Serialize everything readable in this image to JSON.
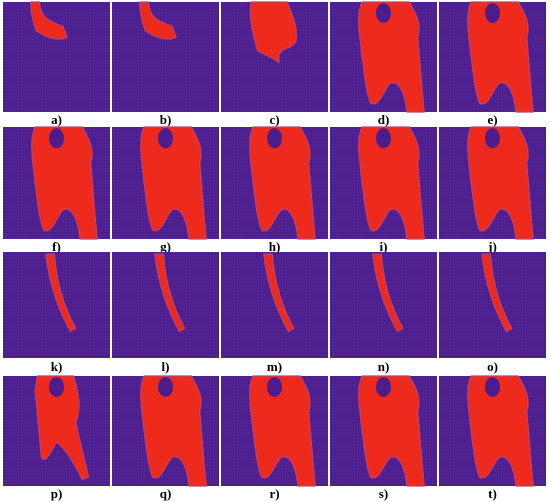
{
  "panels": [
    {
      "label": "a)"
    },
    {
      "label": "b)"
    },
    {
      "label": "c)"
    },
    {
      "label": "d)"
    },
    {
      "label": "e)"
    },
    {
      "label": "f)"
    },
    {
      "label": "g)"
    },
    {
      "label": "h)"
    },
    {
      "label": "i)"
    },
    {
      "label": "j)"
    },
    {
      "label": "k)"
    },
    {
      "label": "l)"
    },
    {
      "label": "m)"
    },
    {
      "label": "n)"
    },
    {
      "label": "o)"
    },
    {
      "label": "p)"
    },
    {
      "label": "q)"
    },
    {
      "label": "r)"
    },
    {
      "label": "s)"
    },
    {
      "label": "t)"
    }
  ]
}
